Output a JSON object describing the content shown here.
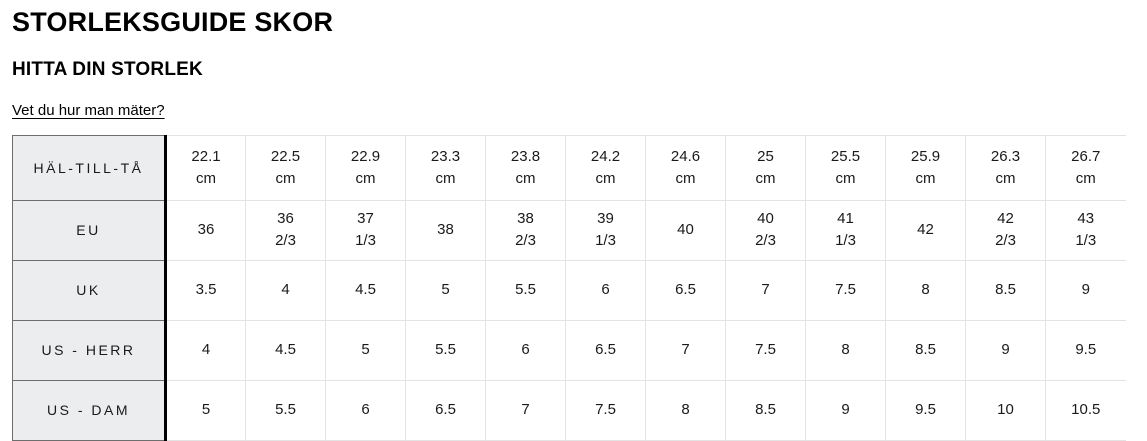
{
  "page": {
    "title": "STORLEKSGUIDE SKOR",
    "subtitle": "HITTA DIN STORLEK",
    "measure_link_label": "Vet du hur man mäter?"
  },
  "colors": {
    "text": "#111111",
    "header_bg": "#ebedee",
    "border_dark": "#6e6e6f",
    "divider_black": "#000000",
    "border_light": "#e3e3e4",
    "page_bg": "#ffffff"
  },
  "chart_data": {
    "type": "table",
    "title": "STORLEKSGUIDE SKOR",
    "row_headers": [
      "HÄL-TILL-TÅ",
      "EU",
      "UK",
      "US - HERR",
      "US - DAM"
    ],
    "rows": [
      {
        "label": "HÄL-TILL-TÅ",
        "values": [
          "22.1\ncm",
          "22.5\ncm",
          "22.9\ncm",
          "23.3\ncm",
          "23.8\ncm",
          "24.2\ncm",
          "24.6\ncm",
          "25\ncm",
          "25.5\ncm",
          "25.9\ncm",
          "26.3\ncm",
          "26.7\ncm"
        ]
      },
      {
        "label": "EU",
        "values": [
          "36",
          "36\n2/3",
          "37\n1/3",
          "38",
          "38\n2/3",
          "39\n1/3",
          "40",
          "40\n2/3",
          "41\n1/3",
          "42",
          "42\n2/3",
          "43\n1/3"
        ]
      },
      {
        "label": "UK",
        "values": [
          "3.5",
          "4",
          "4.5",
          "5",
          "5.5",
          "6",
          "6.5",
          "7",
          "7.5",
          "8",
          "8.5",
          "9"
        ]
      },
      {
        "label": "US - HERR",
        "values": [
          "4",
          "4.5",
          "5",
          "5.5",
          "6",
          "6.5",
          "7",
          "7.5",
          "8",
          "8.5",
          "9",
          "9.5"
        ]
      },
      {
        "label": "US - DAM",
        "values": [
          "5",
          "5.5",
          "6",
          "6.5",
          "7",
          "7.5",
          "8",
          "8.5",
          "9",
          "9.5",
          "10",
          "10.5"
        ]
      }
    ]
  }
}
